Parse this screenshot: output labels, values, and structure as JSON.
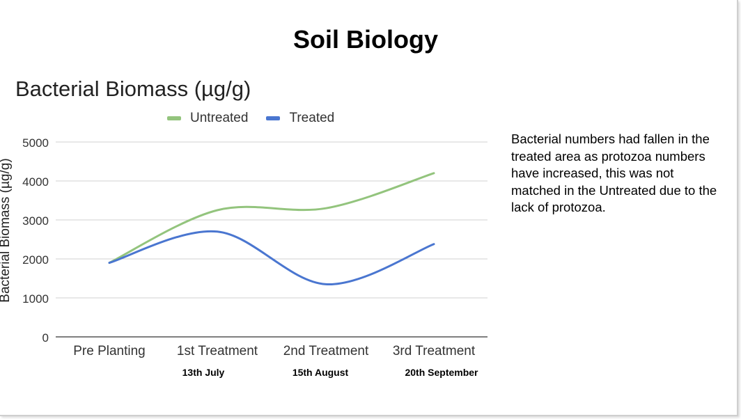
{
  "slide_title": "Soil Biology",
  "chart_data": {
    "type": "line",
    "title": "Bacterial Biomass (µg/g)",
    "xlabel": "",
    "ylabel": "Bacterial Biomass (µg/g)",
    "ylim": [
      0,
      5000
    ],
    "yticks": [
      "0",
      "1000",
      "2000",
      "3000",
      "4000",
      "5000"
    ],
    "categories": [
      "Pre Planting",
      "1st Treatment",
      "2nd Treatment",
      "3rd Treatment"
    ],
    "dates": [
      "",
      "13th July",
      "15th August",
      "20th September"
    ],
    "legend_position": "top",
    "smooth": true,
    "series": [
      {
        "name": "Untreated",
        "color": "#93c47d",
        "values": [
          1900,
          3250,
          3300,
          4200
        ]
      },
      {
        "name": "Treated",
        "color": "#4a76d0",
        "values": [
          1900,
          2700,
          1350,
          2380
        ]
      }
    ]
  },
  "annotation": "Bacterial numbers had fallen in the treated area as protozoa numbers have increased, this was not matched in the Untreated due to the lack of protozoa."
}
